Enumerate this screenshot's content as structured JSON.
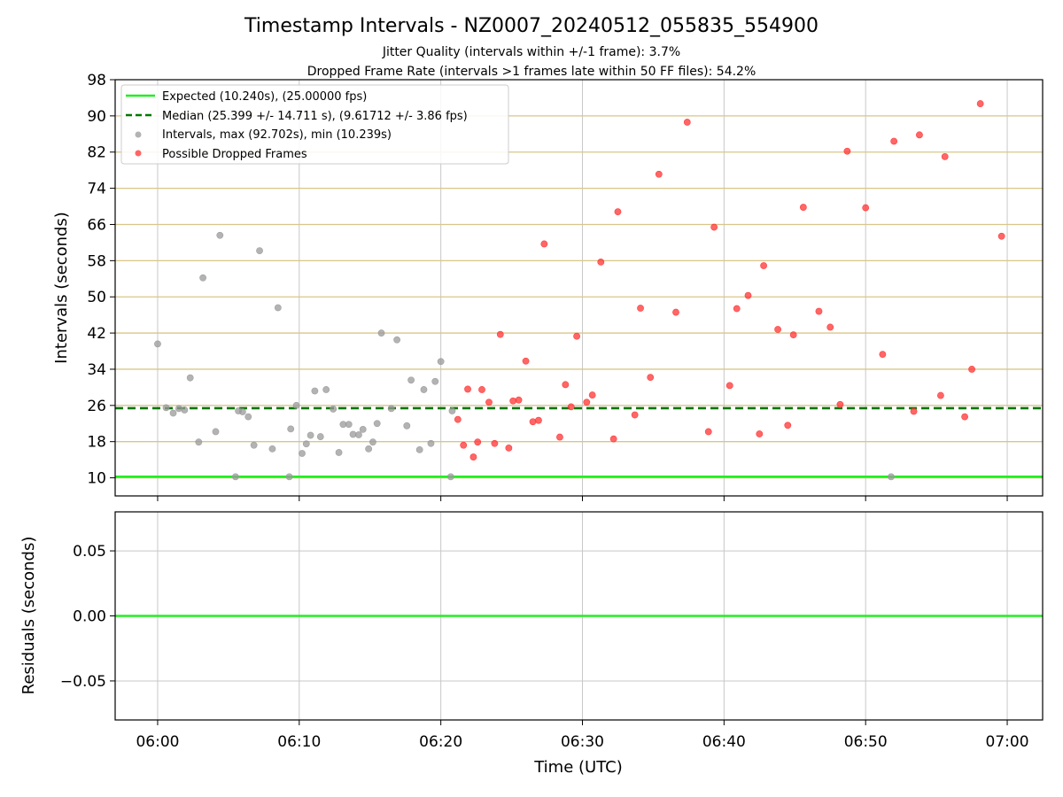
{
  "chart_data": [
    {
      "type": "scatter",
      "title": "Timestamp Intervals - NZ0007_20240512_055835_554900",
      "subtitle_lines": [
        "Jitter Quality (intervals within +/-1 frame): 3.7%",
        "Dropped Frame Rate (intervals >1 frames late within 50 FF files): 54.2%"
      ],
      "xlabel": "",
      "ylabel": "Intervals (seconds)",
      "x_unit": "minutes after 06:00 UTC",
      "xlim": [
        -3,
        62.5
      ],
      "ylim": [
        6,
        98
      ],
      "x_ticks": [
        0,
        10,
        20,
        30,
        40,
        50,
        60
      ],
      "x_tick_labels": [
        "06:00",
        "06:10",
        "06:20",
        "06:30",
        "06:40",
        "06:50",
        "07:00"
      ],
      "y_ticks": [
        10,
        18,
        26,
        34,
        42,
        50,
        58,
        66,
        74,
        82,
        90,
        98
      ],
      "y_tick_labels": [
        "10",
        "18",
        "26",
        "34",
        "42",
        "50",
        "58",
        "66",
        "74",
        "82",
        "90",
        "98"
      ],
      "grid": true,
      "legend_position": "top-left",
      "reference_lines": [
        {
          "name": "Expected (10.240s), (25.00000 fps)",
          "y": 10.24,
          "style": "solid",
          "color": "#22ee22"
        },
        {
          "name": "Median (25.399 +/- 14.711 s), (9.61712 +/- 3.86 fps)",
          "y": 25.399,
          "style": "dashed",
          "color": "#007700"
        }
      ],
      "series": [
        {
          "name": "Intervals, max (92.702s), min (10.239s)",
          "color": "#999999",
          "points": [
            [
              0.0,
              39.6
            ],
            [
              0.6,
              25.5
            ],
            [
              1.1,
              24.3
            ],
            [
              1.5,
              25.3
            ],
            [
              1.9,
              25.0
            ],
            [
              2.3,
              32.1
            ],
            [
              2.9,
              17.9
            ],
            [
              3.2,
              54.2
            ],
            [
              4.1,
              20.2
            ],
            [
              4.4,
              63.6
            ],
            [
              5.5,
              10.24
            ],
            [
              5.7,
              24.8
            ],
            [
              6.0,
              24.6
            ],
            [
              6.4,
              23.5
            ],
            [
              6.8,
              17.2
            ],
            [
              7.2,
              60.2
            ],
            [
              8.1,
              16.4
            ],
            [
              8.5,
              47.6
            ],
            [
              9.3,
              10.24
            ],
            [
              9.4,
              20.8
            ],
            [
              9.8,
              26.0
            ],
            [
              10.2,
              15.4
            ],
            [
              10.5,
              17.5
            ],
            [
              10.8,
              19.4
            ],
            [
              11.1,
              29.2
            ],
            [
              11.5,
              19.1
            ],
            [
              11.9,
              29.5
            ],
            [
              12.4,
              25.2
            ],
            [
              12.8,
              15.6
            ],
            [
              13.1,
              21.8
            ],
            [
              13.5,
              21.8
            ],
            [
              13.8,
              19.6
            ],
            [
              14.2,
              19.5
            ],
            [
              14.5,
              20.7
            ],
            [
              14.9,
              16.4
            ],
            [
              15.2,
              17.9
            ],
            [
              15.5,
              22.0
            ],
            [
              15.8,
              42.0
            ],
            [
              16.5,
              25.3
            ],
            [
              16.9,
              40.5
            ],
            [
              17.6,
              21.5
            ],
            [
              17.9,
              31.6
            ],
            [
              18.5,
              16.2
            ],
            [
              18.8,
              29.5
            ],
            [
              19.3,
              17.6
            ],
            [
              19.6,
              31.3
            ],
            [
              20.0,
              35.7
            ],
            [
              20.7,
              10.24
            ],
            [
              20.8,
              24.8
            ],
            [
              51.8,
              10.24
            ]
          ]
        },
        {
          "name": "Possible Dropped Frames",
          "color": "#ff3333",
          "points": [
            [
              21.2,
              22.9
            ],
            [
              21.6,
              17.2
            ],
            [
              21.9,
              29.6
            ],
            [
              22.3,
              14.6
            ],
            [
              22.6,
              17.9
            ],
            [
              22.9,
              29.5
            ],
            [
              23.4,
              26.7
            ],
            [
              23.8,
              17.6
            ],
            [
              24.2,
              41.7
            ],
            [
              24.8,
              16.6
            ],
            [
              25.1,
              27.0
            ],
            [
              25.5,
              27.2
            ],
            [
              26.0,
              35.8
            ],
            [
              26.5,
              22.4
            ],
            [
              26.9,
              22.7
            ],
            [
              27.3,
              61.7
            ],
            [
              28.4,
              19.0
            ],
            [
              28.8,
              30.6
            ],
            [
              29.2,
              25.7
            ],
            [
              29.6,
              41.3
            ],
            [
              30.3,
              26.7
            ],
            [
              30.7,
              28.3
            ],
            [
              31.3,
              57.7
            ],
            [
              32.2,
              18.6
            ],
            [
              32.5,
              68.8
            ],
            [
              33.7,
              23.9
            ],
            [
              34.1,
              47.5
            ],
            [
              34.8,
              32.2
            ],
            [
              35.4,
              77.1
            ],
            [
              36.6,
              46.6
            ],
            [
              37.4,
              88.6
            ],
            [
              38.9,
              20.2
            ],
            [
              39.3,
              65.4
            ],
            [
              40.4,
              30.4
            ],
            [
              40.9,
              47.4
            ],
            [
              41.7,
              50.3
            ],
            [
              42.5,
              19.7
            ],
            [
              42.8,
              56.9
            ],
            [
              43.8,
              42.8
            ],
            [
              44.5,
              21.6
            ],
            [
              44.9,
              41.6
            ],
            [
              45.6,
              69.8
            ],
            [
              46.7,
              46.8
            ],
            [
              47.5,
              43.3
            ],
            [
              48.2,
              26.2
            ],
            [
              48.7,
              82.2
            ],
            [
              50.0,
              69.7
            ],
            [
              51.2,
              37.3
            ],
            [
              52.0,
              84.4
            ],
            [
              53.4,
              24.7
            ],
            [
              53.8,
              85.8
            ],
            [
              55.3,
              28.2
            ],
            [
              55.6,
              81.0
            ],
            [
              57.0,
              23.5
            ],
            [
              57.5,
              34.0
            ],
            [
              58.1,
              92.7
            ],
            [
              59.6,
              63.4
            ]
          ]
        }
      ]
    },
    {
      "type": "line",
      "xlabel": "Time (UTC)",
      "ylabel": "Residuals (seconds)",
      "xlim": [
        -3,
        62.5
      ],
      "ylim": [
        -0.08,
        0.08
      ],
      "y_ticks": [
        0.05,
        0.0,
        -0.05
      ],
      "y_tick_labels": [
        "0.05",
        "0.00",
        "−0.05"
      ],
      "x_ticks": [
        0,
        10,
        20,
        30,
        40,
        50,
        60
      ],
      "x_tick_labels": [
        "06:00",
        "06:10",
        "06:20",
        "06:30",
        "06:40",
        "06:50",
        "07:00"
      ],
      "grid": true,
      "series": [
        {
          "name": "Residuals",
          "color": "#22ee22",
          "x": [
            -3,
            62.5
          ],
          "values": [
            0,
            0
          ]
        }
      ]
    }
  ]
}
